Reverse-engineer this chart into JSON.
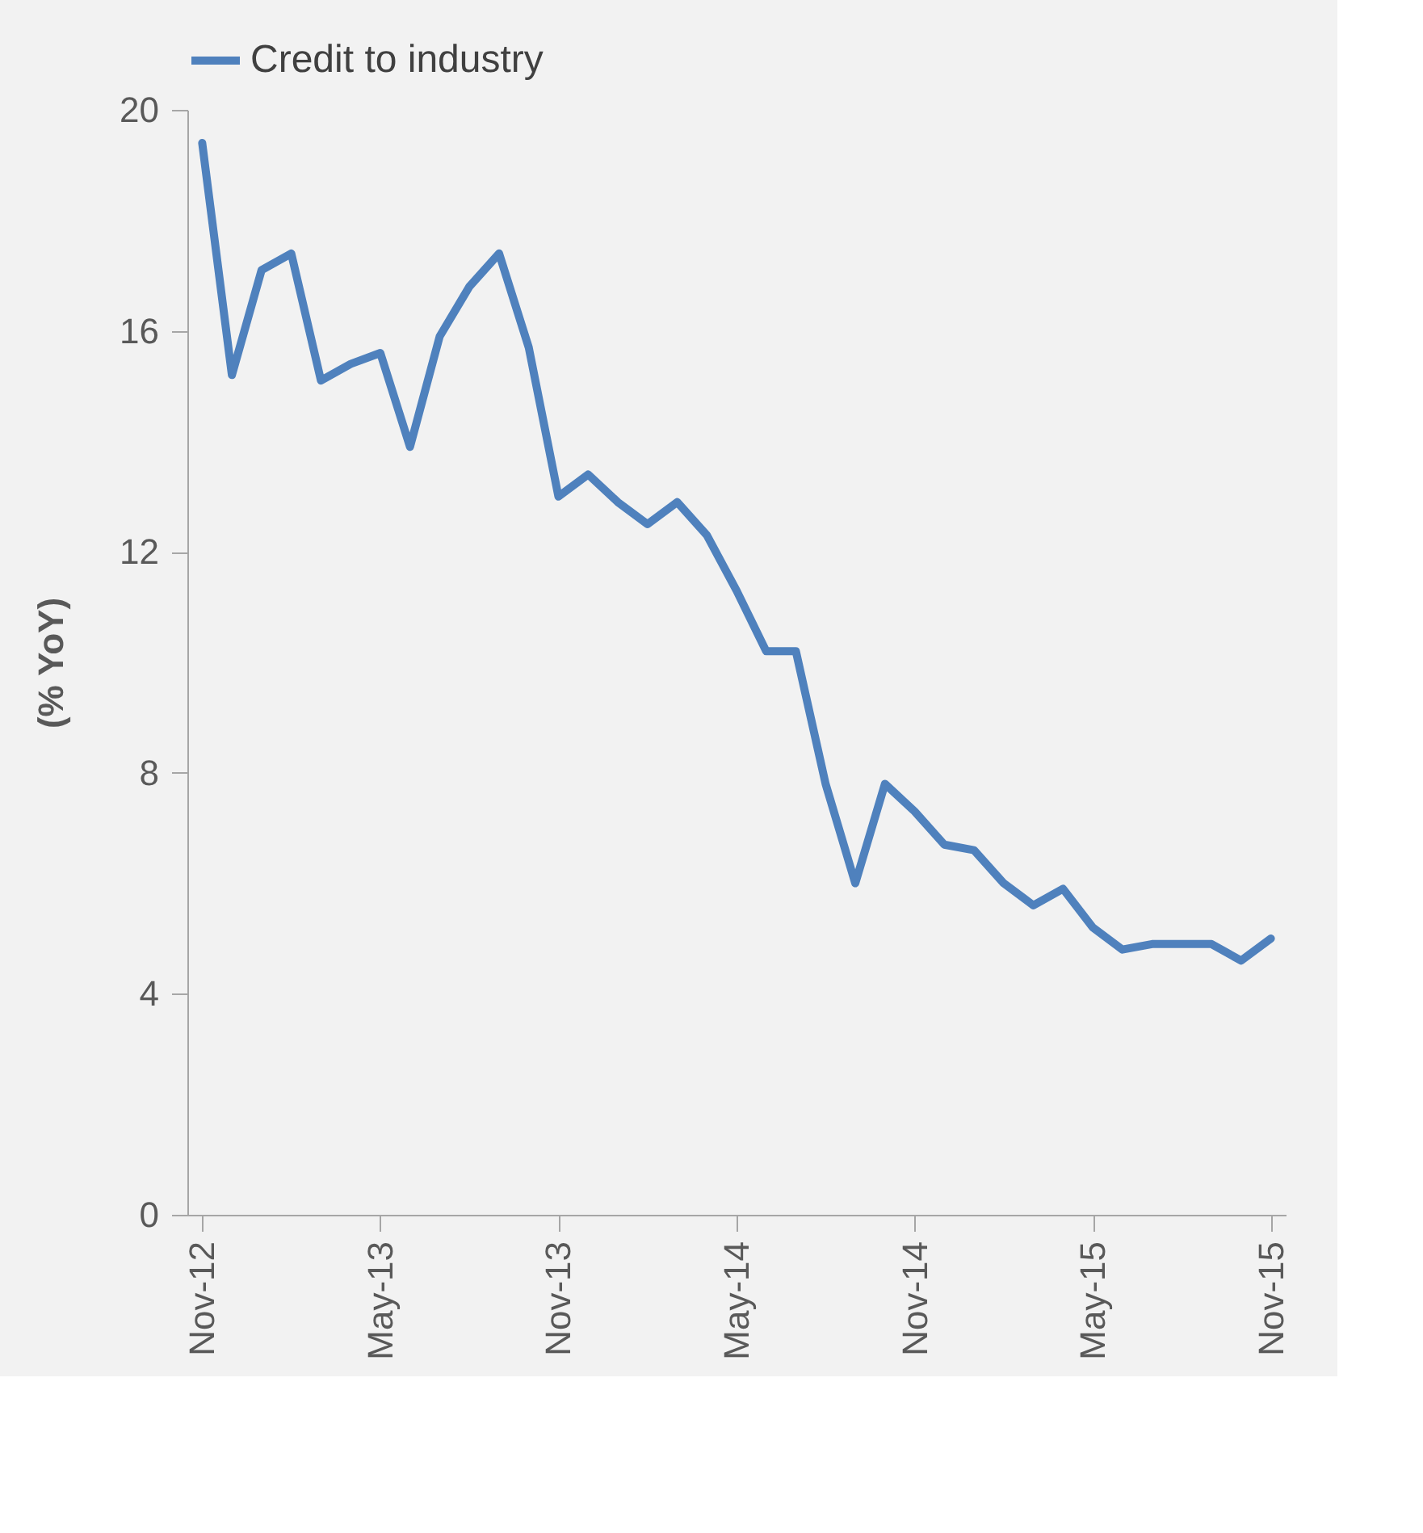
{
  "chart_data": {
    "type": "line",
    "ylabel": "(% YoY)",
    "categories": [
      "Nov-12",
      null,
      null,
      null,
      null,
      null,
      "May-13",
      null,
      null,
      null,
      null,
      null,
      "Nov-13",
      null,
      null,
      null,
      null,
      null,
      "May-14",
      null,
      null,
      null,
      null,
      null,
      "Nov-14",
      null,
      null,
      null,
      null,
      null,
      "May-15",
      null,
      null,
      null,
      null,
      null,
      "Nov-15"
    ],
    "series": [
      {
        "name": "Credit to industry",
        "color": "#4f81bd",
        "values": [
          19.4,
          15.2,
          17.1,
          17.4,
          15.1,
          15.4,
          15.6,
          13.9,
          15.9,
          16.8,
          17.4,
          15.7,
          13.0,
          13.4,
          12.9,
          12.5,
          12.9,
          12.3,
          11.3,
          10.2,
          10.2,
          7.8,
          6.0,
          7.8,
          7.3,
          6.7,
          6.6,
          6.0,
          5.6,
          5.9,
          5.2,
          4.8,
          4.9,
          4.9,
          4.9,
          4.6,
          5.0
        ]
      }
    ],
    "ylim": [
      0,
      20
    ],
    "yticks": [
      0,
      4,
      8,
      12,
      16,
      20
    ],
    "grid": false,
    "legend": "top"
  }
}
